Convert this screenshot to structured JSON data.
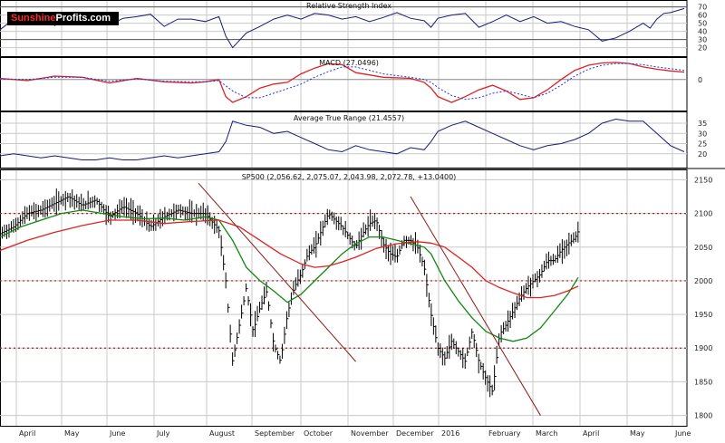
{
  "brand": {
    "part1": "Sunshine",
    "part2": "Profits.com"
  },
  "colors": {
    "price": "#000000",
    "ma_fast": "#118811",
    "ma_slow": "#dd2222",
    "trend": "#8b1a1a",
    "indicator": "#1a1a7a",
    "signal": "#2233ee",
    "grid": "#c8c8c8",
    "level": "#aa2222"
  },
  "chart_data": [
    {
      "type": "line",
      "title": "Relative Strength Index",
      "yticks": [
        20,
        30,
        40,
        50,
        60,
        70
      ],
      "ylim": [
        14,
        74
      ],
      "x": [
        0,
        0.02,
        0.04,
        0.06,
        0.08,
        0.1,
        0.12,
        0.14,
        0.16,
        0.18,
        0.2,
        0.22,
        0.24,
        0.26,
        0.28,
        0.3,
        0.32,
        0.33,
        0.34,
        0.36,
        0.38,
        0.4,
        0.42,
        0.44,
        0.46,
        0.48,
        0.5,
        0.52,
        0.54,
        0.56,
        0.58,
        0.6,
        0.62,
        0.63,
        0.64,
        0.66,
        0.68,
        0.7,
        0.72,
        0.74,
        0.76,
        0.78,
        0.8,
        0.82,
        0.84,
        0.86,
        0.88,
        0.9,
        0.92,
        0.94,
        0.95,
        0.96,
        0.97,
        0.98,
        1.0
      ],
      "values": [
        42,
        55,
        49,
        62,
        47,
        58,
        52,
        63,
        48,
        56,
        58,
        61,
        46,
        55,
        55,
        52,
        58,
        34,
        20,
        38,
        46,
        55,
        60,
        55,
        62,
        60,
        55,
        58,
        52,
        57,
        63,
        56,
        53,
        45,
        56,
        60,
        62,
        45,
        52,
        60,
        52,
        58,
        50,
        52,
        46,
        42,
        28,
        32,
        40,
        50,
        44,
        55,
        62,
        63,
        68
      ],
      "levels": [
        30,
        70
      ]
    },
    {
      "type": "line",
      "title": "MACD (27.0496)",
      "yticks": [
        0
      ],
      "ylim": [
        -48,
        33
      ],
      "series": [
        {
          "x": [
            0,
            0.04,
            0.08,
            0.12,
            0.16,
            0.2,
            0.24,
            0.28,
            0.3,
            0.32,
            0.33,
            0.34,
            0.36,
            0.38,
            0.4,
            0.42,
            0.44,
            0.46,
            0.48,
            0.5,
            0.52,
            0.54,
            0.56,
            0.6,
            0.62,
            0.63,
            0.64,
            0.66,
            0.68,
            0.7,
            0.72,
            0.74,
            0.76,
            0.78,
            0.8,
            0.82,
            0.84,
            0.86,
            0.88,
            0.9,
            0.92,
            0.94,
            0.96,
            0.98,
            1.0
          ],
          "values": [
            2,
            -2,
            6,
            4,
            -6,
            2,
            -4,
            -6,
            -4,
            0,
            -30,
            -40,
            -30,
            -15,
            -8,
            -5,
            10,
            20,
            28,
            26,
            12,
            8,
            4,
            2,
            -5,
            -15,
            -30,
            -40,
            -30,
            -18,
            -10,
            -20,
            -35,
            -32,
            -18,
            0,
            16,
            25,
            29,
            30,
            28,
            22,
            18,
            15,
            13
          ]
        },
        {
          "x": [
            0,
            0.04,
            0.08,
            0.12,
            0.16,
            0.2,
            0.24,
            0.28,
            0.3,
            0.32,
            0.34,
            0.36,
            0.38,
            0.4,
            0.42,
            0.44,
            0.46,
            0.48,
            0.5,
            0.52,
            0.54,
            0.56,
            0.6,
            0.62,
            0.63,
            0.64,
            0.66,
            0.68,
            0.7,
            0.72,
            0.74,
            0.76,
            0.78,
            0.8,
            0.82,
            0.84,
            0.86,
            0.88,
            0.9,
            0.92,
            0.94,
            0.96,
            0.98,
            1.0
          ],
          "values": [
            1,
            0,
            4,
            4,
            -3,
            1,
            -3,
            -4,
            -4,
            -2,
            -20,
            -32,
            -32,
            -24,
            -16,
            -8,
            4,
            14,
            22,
            22,
            16,
            10,
            4,
            0,
            -5,
            -14,
            -28,
            -35,
            -32,
            -24,
            -20,
            -26,
            -32,
            -24,
            -10,
            6,
            18,
            25,
            28,
            28,
            26,
            22,
            19,
            16
          ]
        }
      ]
    },
    {
      "type": "line",
      "title": "Average True Range (21.4557)",
      "yticks": [
        20,
        25,
        30,
        35
      ],
      "ylim": [
        15,
        39
      ],
      "x": [
        0,
        0.02,
        0.04,
        0.06,
        0.08,
        0.1,
        0.12,
        0.14,
        0.16,
        0.18,
        0.2,
        0.22,
        0.24,
        0.26,
        0.28,
        0.3,
        0.32,
        0.33,
        0.34,
        0.36,
        0.38,
        0.4,
        0.42,
        0.44,
        0.46,
        0.48,
        0.5,
        0.52,
        0.54,
        0.56,
        0.58,
        0.6,
        0.62,
        0.63,
        0.64,
        0.66,
        0.68,
        0.7,
        0.72,
        0.74,
        0.76,
        0.78,
        0.8,
        0.82,
        0.84,
        0.86,
        0.88,
        0.9,
        0.92,
        0.94,
        0.96,
        0.98,
        1.0
      ],
      "values": [
        19,
        20,
        19,
        18,
        19,
        18,
        17,
        17,
        18,
        17,
        17,
        18,
        19,
        18,
        19,
        20,
        21,
        26,
        36,
        34,
        33,
        30,
        31,
        28,
        25,
        22,
        21,
        24,
        22,
        21,
        20,
        23,
        22,
        26,
        31,
        34,
        36,
        33,
        30,
        27,
        24,
        22,
        24,
        25,
        27,
        30,
        35,
        37,
        36,
        36,
        30,
        24,
        21
      ],
      "levels": [
        20
      ]
    },
    {
      "type": "candlestick",
      "title": "SP500 (2,056.62, 2,075.07, 2,043.98, 2,072.78, +13.0400)",
      "yticks": [
        1800,
        1850,
        1900,
        1950,
        2000,
        2050,
        2100,
        2150
      ],
      "ylim": [
        1790,
        2160
      ],
      "xlabels": [
        "April",
        "May",
        "June",
        "July",
        "August",
        "September",
        "October",
        "November",
        "December",
        "2016",
        "February",
        "March",
        "April",
        "May",
        "June"
      ],
      "levels": [
        2100,
        2000,
        1900
      ],
      "price": [
        [
          0,
          2070
        ],
        [
          0.02,
          2080
        ],
        [
          0.04,
          2100
        ],
        [
          0.06,
          2105
        ],
        [
          0.08,
          2115
        ],
        [
          0.1,
          2125
        ],
        [
          0.12,
          2112
        ],
        [
          0.14,
          2120
        ],
        [
          0.16,
          2095
        ],
        [
          0.18,
          2110
        ],
        [
          0.2,
          2100
        ],
        [
          0.22,
          2080
        ],
        [
          0.24,
          2095
        ],
        [
          0.26,
          2105
        ],
        [
          0.28,
          2100
        ],
        [
          0.3,
          2100
        ],
        [
          0.32,
          2075
        ],
        [
          0.33,
          2000
        ],
        [
          0.34,
          1880
        ],
        [
          0.35,
          1935
        ],
        [
          0.36,
          1990
        ],
        [
          0.37,
          1925
        ],
        [
          0.38,
          1960
        ],
        [
          0.39,
          1985
        ],
        [
          0.4,
          1905
        ],
        [
          0.41,
          1880
        ],
        [
          0.42,
          1950
        ],
        [
          0.43,
          1990
        ],
        [
          0.44,
          2010
        ],
        [
          0.45,
          2040
        ],
        [
          0.46,
          2050
        ],
        [
          0.47,
          2075
        ],
        [
          0.48,
          2100
        ],
        [
          0.49,
          2090
        ],
        [
          0.5,
          2080
        ],
        [
          0.51,
          2065
        ],
        [
          0.52,
          2050
        ],
        [
          0.53,
          2070
        ],
        [
          0.54,
          2085
        ],
        [
          0.55,
          2090
        ],
        [
          0.56,
          2055
        ],
        [
          0.57,
          2040
        ],
        [
          0.58,
          2035
        ],
        [
          0.59,
          2060
        ],
        [
          0.6,
          2060
        ],
        [
          0.61,
          2050
        ],
        [
          0.62,
          2020
        ],
        [
          0.63,
          1950
        ],
        [
          0.64,
          1900
        ],
        [
          0.65,
          1885
        ],
        [
          0.66,
          1910
        ],
        [
          0.67,
          1895
        ],
        [
          0.68,
          1880
        ],
        [
          0.69,
          1925
        ],
        [
          0.7,
          1880
        ],
        [
          0.71,
          1855
        ],
        [
          0.72,
          1835
        ],
        [
          0.73,
          1920
        ],
        [
          0.74,
          1935
        ],
        [
          0.75,
          1955
        ],
        [
          0.76,
          1975
        ],
        [
          0.77,
          1990
        ],
        [
          0.78,
          2000
        ],
        [
          0.79,
          2010
        ],
        [
          0.8,
          2030
        ],
        [
          0.81,
          2030
        ],
        [
          0.82,
          2045
        ],
        [
          0.83,
          2055
        ],
        [
          0.84,
          2063
        ],
        [
          0.845,
          2073
        ]
      ],
      "ma_fast": [
        [
          0,
          2065
        ],
        [
          0.03,
          2080
        ],
        [
          0.06,
          2090
        ],
        [
          0.09,
          2100
        ],
        [
          0.12,
          2105
        ],
        [
          0.15,
          2100
        ],
        [
          0.18,
          2095
        ],
        [
          0.21,
          2092
        ],
        [
          0.24,
          2093
        ],
        [
          0.27,
          2090
        ],
        [
          0.3,
          2095
        ],
        [
          0.32,
          2090
        ],
        [
          0.34,
          2060
        ],
        [
          0.36,
          2020
        ],
        [
          0.38,
          2000
        ],
        [
          0.4,
          1985
        ],
        [
          0.42,
          1968
        ],
        [
          0.44,
          1980
        ],
        [
          0.46,
          2000
        ],
        [
          0.48,
          2020
        ],
        [
          0.5,
          2040
        ],
        [
          0.52,
          2055
        ],
        [
          0.54,
          2065
        ],
        [
          0.56,
          2065
        ],
        [
          0.58,
          2060
        ],
        [
          0.6,
          2055
        ],
        [
          0.62,
          2050
        ],
        [
          0.63,
          2040
        ],
        [
          0.65,
          2000
        ],
        [
          0.67,
          1970
        ],
        [
          0.69,
          1945
        ],
        [
          0.71,
          1925
        ],
        [
          0.73,
          1915
        ],
        [
          0.75,
          1910
        ],
        [
          0.77,
          1915
        ],
        [
          0.79,
          1930
        ],
        [
          0.81,
          1955
        ],
        [
          0.83,
          1980
        ],
        [
          0.845,
          2005
        ]
      ],
      "ma_slow": [
        [
          0,
          2045
        ],
        [
          0.04,
          2060
        ],
        [
          0.08,
          2072
        ],
        [
          0.12,
          2082
        ],
        [
          0.16,
          2090
        ],
        [
          0.2,
          2090
        ],
        [
          0.24,
          2085
        ],
        [
          0.28,
          2088
        ],
        [
          0.32,
          2090
        ],
        [
          0.35,
          2080
        ],
        [
          0.38,
          2060
        ],
        [
          0.41,
          2040
        ],
        [
          0.44,
          2025
        ],
        [
          0.46,
          2020
        ],
        [
          0.48,
          2022
        ],
        [
          0.5,
          2028
        ],
        [
          0.52,
          2035
        ],
        [
          0.55,
          2048
        ],
        [
          0.58,
          2055
        ],
        [
          0.61,
          2058
        ],
        [
          0.63,
          2056
        ],
        [
          0.65,
          2050
        ],
        [
          0.67,
          2035
        ],
        [
          0.69,
          2020
        ],
        [
          0.71,
          2000
        ],
        [
          0.73,
          1990
        ],
        [
          0.75,
          1982
        ],
        [
          0.77,
          1975
        ],
        [
          0.79,
          1975
        ],
        [
          0.81,
          1978
        ],
        [
          0.83,
          1985
        ],
        [
          0.845,
          1992
        ]
      ],
      "trendlines": [
        [
          [
            0.29,
            2145
          ],
          [
            0.52,
            1880
          ]
        ],
        [
          [
            0.6,
            2125
          ],
          [
            0.79,
            1800
          ]
        ]
      ]
    }
  ]
}
